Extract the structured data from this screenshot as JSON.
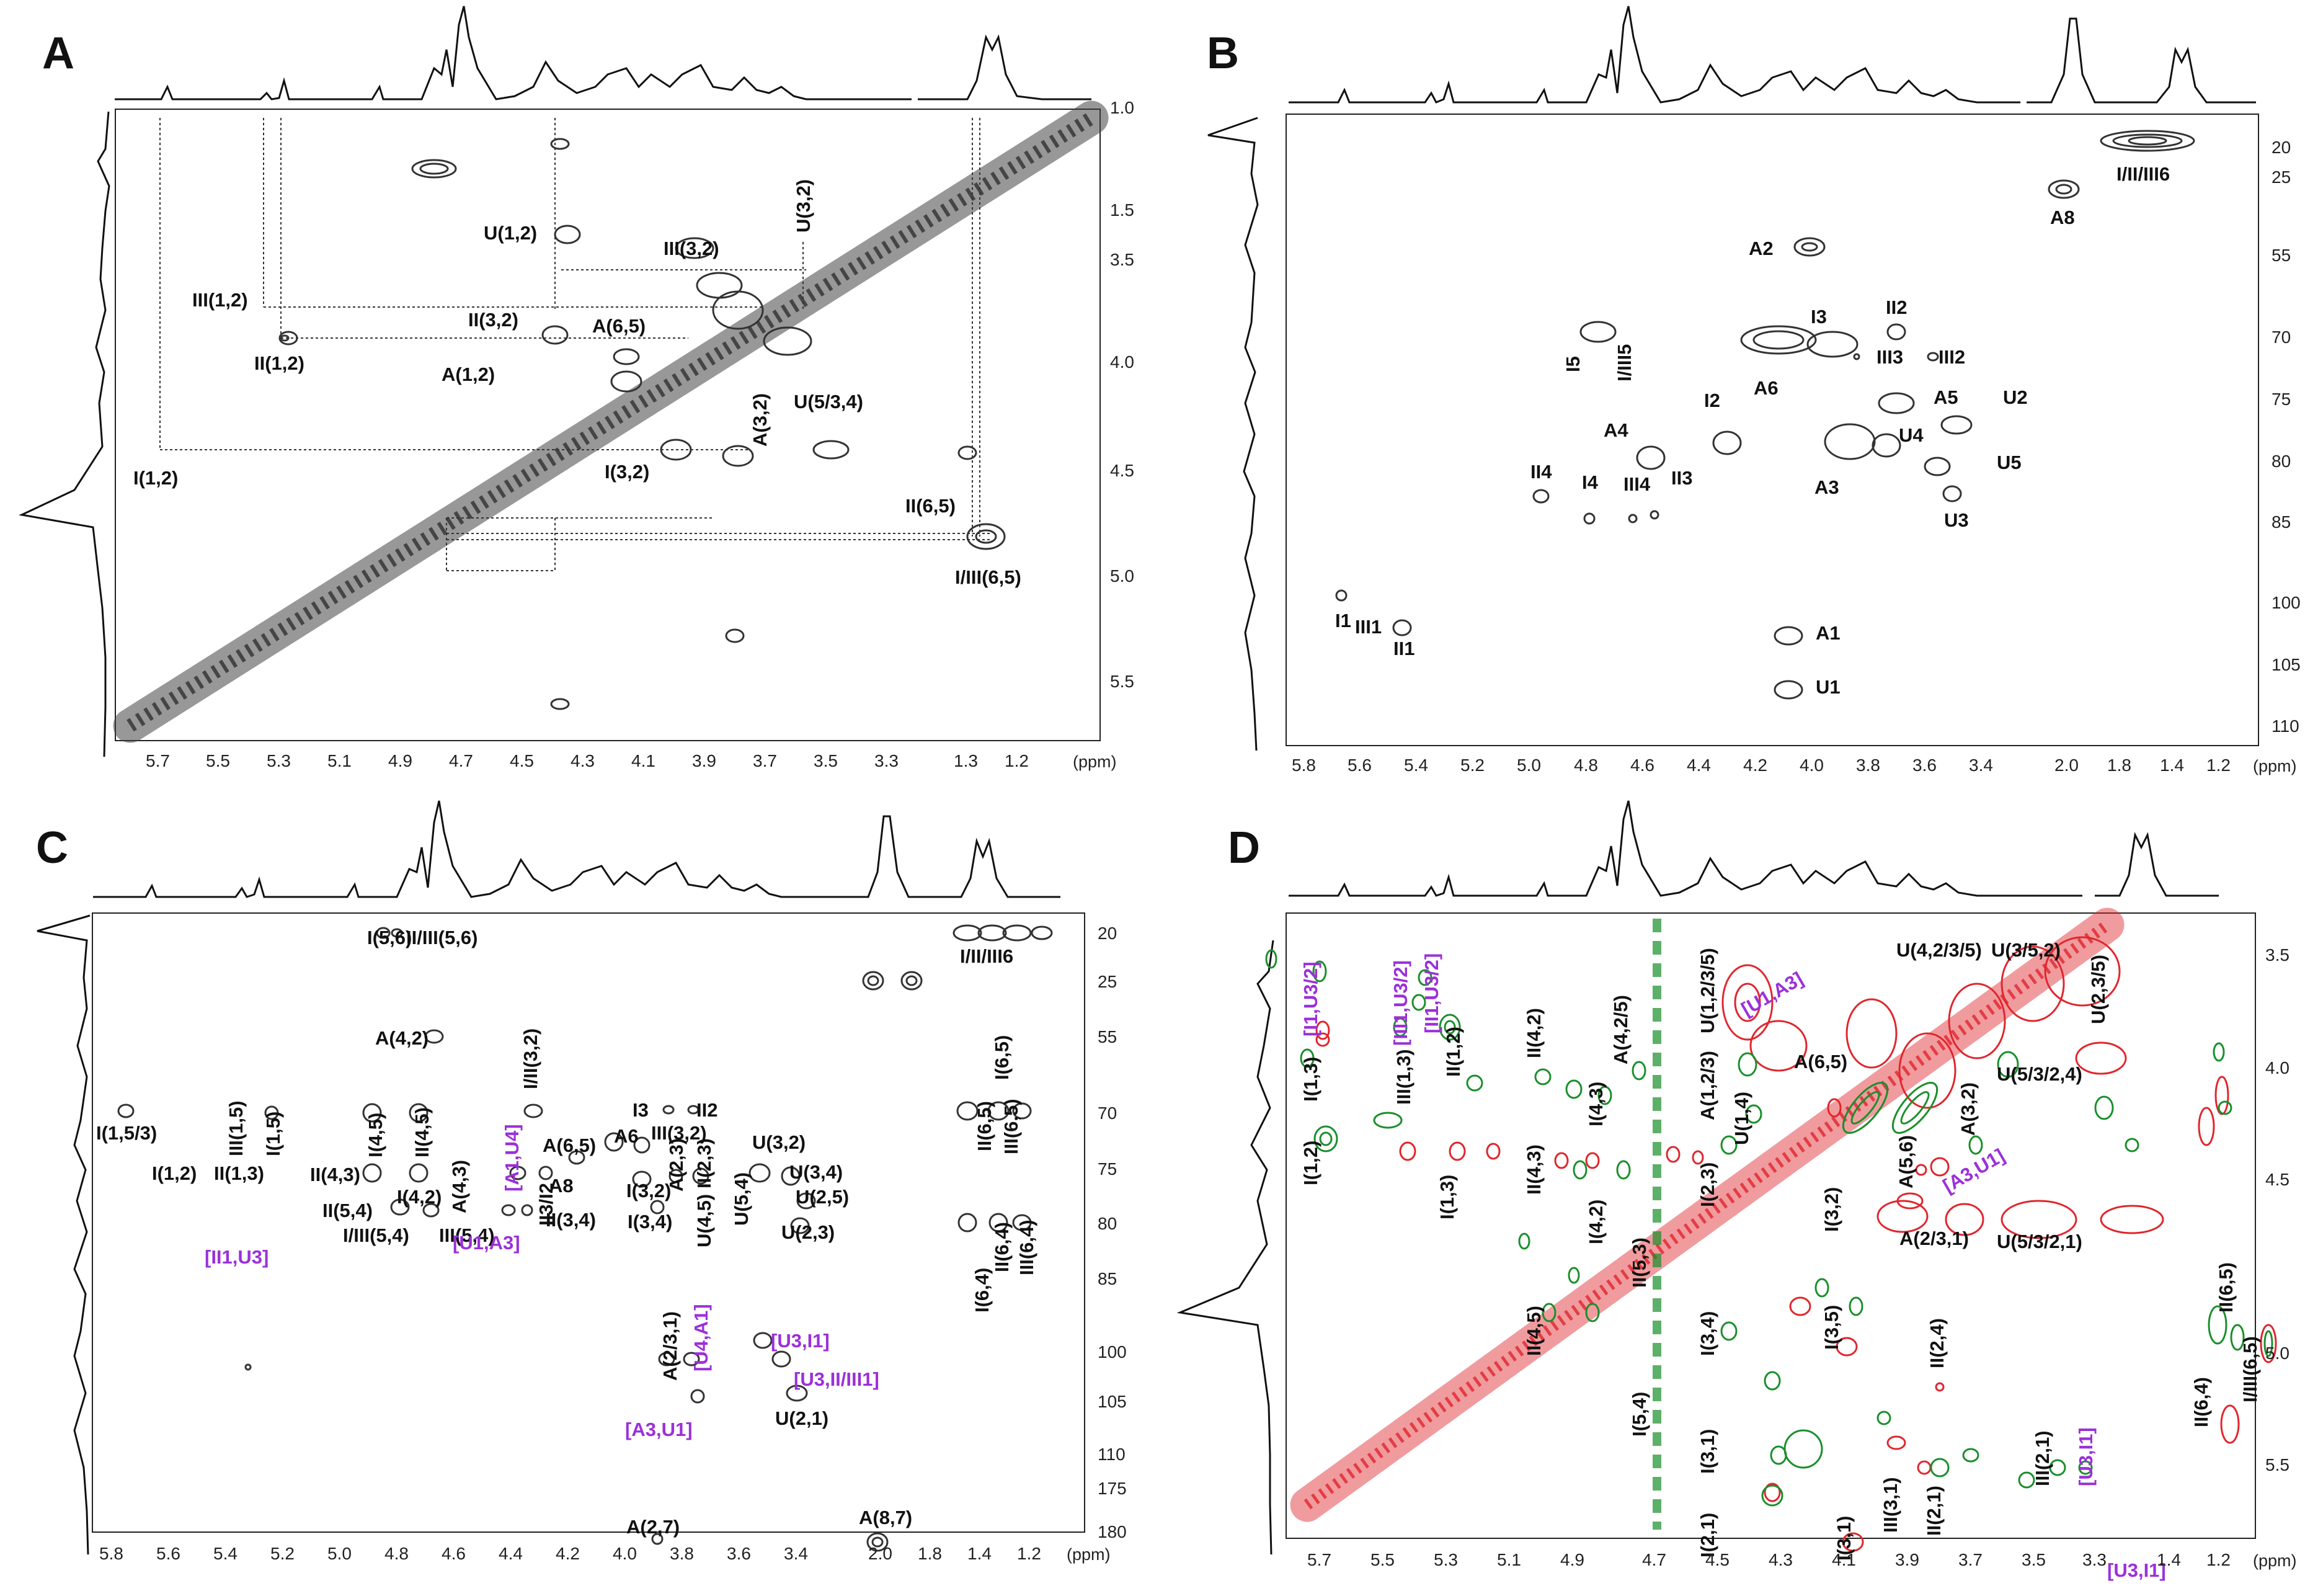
{
  "panels": [
    {
      "letter": "A",
      "x_ticks": [
        "5.7",
        "5.5",
        "5.3",
        "5.1",
        "4.9",
        "4.7",
        "4.5",
        "4.3",
        "4.1",
        "3.9",
        "3.7",
        "3.5",
        "3.3",
        "1.3",
        "1.2"
      ],
      "y_ticks": [
        "1.0",
        "1.5",
        "3.5",
        "4.0",
        "4.5",
        "5.0",
        "5.5"
      ],
      "unit": "(ppm)",
      "labels": [
        "I(1,2)",
        "II(1,2)",
        "III(1,2)",
        "A(1,2)",
        "II(3,2)",
        "U(1,2)",
        "III(3,2)",
        "A(6,5)",
        "U(3,2)",
        "U(5/3,4)",
        "A(3,2)",
        "I(3,2)",
        "II(6,5)",
        "I/III(6,5)"
      ]
    },
    {
      "letter": "B",
      "x_ticks": [
        "5.8",
        "5.6",
        "5.4",
        "5.2",
        "5.0",
        "4.8",
        "4.6",
        "4.4",
        "4.2",
        "4.0",
        "3.8",
        "3.6",
        "3.4",
        "2.0",
        "1.8",
        "1.4",
        "1.2"
      ],
      "y_ticks": [
        "20",
        "25",
        "55",
        "70",
        "75",
        "80",
        "85",
        "100",
        "105",
        "110"
      ],
      "unit": "(ppm)",
      "labels": [
        "I1",
        "III1",
        "II1",
        "I5",
        "I/III5",
        "A4",
        "II4",
        "I4",
        "III4",
        "I2",
        "II3",
        "A2",
        "I3",
        "A6",
        "II2",
        "III3",
        "III2",
        "A5",
        "U2",
        "U4",
        "U5",
        "A3",
        "U3",
        "A1",
        "U1",
        "A8",
        "I/II/III6"
      ]
    },
    {
      "letter": "C",
      "x_ticks": [
        "5.8",
        "5.6",
        "5.4",
        "5.2",
        "5.0",
        "4.8",
        "4.6",
        "4.4",
        "4.2",
        "4.0",
        "3.8",
        "3.6",
        "3.4",
        "2.0",
        "1.8",
        "1.4",
        "1.2"
      ],
      "y_ticks": [
        "20",
        "25",
        "55",
        "70",
        "75",
        "80",
        "85",
        "100",
        "105",
        "110",
        "175",
        "180"
      ],
      "unit": "(ppm)",
      "labels": [
        "I(5,6)",
        "II/III(5,6)",
        "I/II/III6",
        "A(4,2)",
        "I/II(3,2)",
        "I(1,5/3)",
        "III(1,5)",
        "I(1,5)",
        "I(4,5)",
        "II(4,5)",
        "I(4,2)",
        "A(4,3)",
        "I3",
        "II2",
        "A6",
        "A(6,5)",
        "III(3,2)",
        "A8",
        "I(1,2)",
        "II(1,3)",
        "II(4,3)",
        "II3/I2",
        "I(3,2)",
        "A(2,3)",
        "II(2,3)",
        "U(3,2)",
        "U(3,4)",
        "U(2,5)",
        "II(5,4)",
        "I/III(5,4)",
        "III(5,4)",
        "II(3,4)",
        "I(3,4)",
        "U(4,5)",
        "U(5,4)",
        "U(2,3)",
        "A(2/3,1)",
        "U(2,1)",
        "A(8,7)",
        "A(2,7)",
        "I(6,5)",
        "II(6,5)",
        "III(6,5)",
        "II(6,4)",
        "III(6,4)",
        "I(6,4)"
      ],
      "purple_labels": [
        "[II1,U3]",
        "[A1,U4]",
        "[U1,A3]",
        "[U4,A1]",
        "[U3,I1]",
        "[U3,II/III1]",
        "[A3,U1]"
      ]
    },
    {
      "letter": "D",
      "x_ticks": [
        "5.7",
        "5.5",
        "5.3",
        "5.1",
        "4.9",
        "4.7",
        "4.5",
        "4.3",
        "4.1",
        "3.9",
        "3.7",
        "3.5",
        "3.3",
        "1.4",
        "1.2"
      ],
      "y_ticks": [
        "3.5",
        "4.0",
        "4.5",
        "5.0",
        "5.5"
      ],
      "unit": "(ppm)",
      "labels": [
        "I(1,3)",
        "I(1,2)",
        "III(1,3)",
        "II(1,2)",
        "I(1,3)",
        "II(4,2)",
        "II(4,3)",
        "I(4,2)",
        "I(4,3)",
        "A(4,2/5)",
        "II(4,5)",
        "II(5,3)",
        "I(5,4)",
        "A(1,2/3)",
        "U(1,2/3/5)",
        "U(1,4)",
        "I(2,3)",
        "I(3,4)",
        "I(3,1)",
        "I(2,1)",
        "A(6,5)",
        "A(5,6)",
        "A(3,2)",
        "I(3,2)",
        "I(3,5)",
        "A(2/3,1)",
        "U(4,2/3/5)",
        "U(3/5,2)",
        "U(2,3/5)",
        "U(5/3/2,4)",
        "U(5/3/2,1)",
        "II(2,4)",
        "II(2,1)",
        "III(2,1)",
        "III(3,1)",
        "I(3,1)",
        "II(6,5)",
        "II(6,4)",
        "I/III(6,5)"
      ],
      "purple_labels": [
        "[I1,U3/2]",
        "[III1,U3/2]",
        "[II1,U3/2]",
        "[U1,A3]",
        "[A3,U1]",
        "[U3,I1]",
        "[U3,I1]"
      ]
    }
  ],
  "colors": {
    "contour": "#555555",
    "red": "#e0262d",
    "green": "#1a8f2b",
    "purple": "#9b30d9"
  }
}
